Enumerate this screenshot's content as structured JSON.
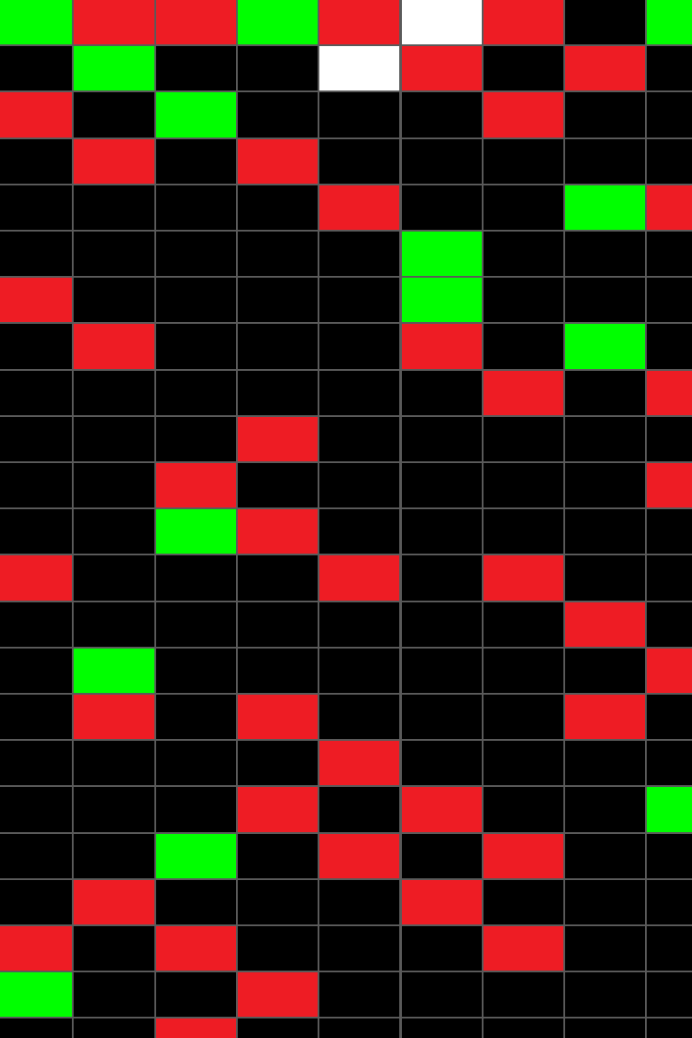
{
  "grid": {
    "rows": [
      [
        "#00ff00",
        "#ee1c24",
        "#ee1c24",
        "#00ff00",
        "#ee1c24",
        "#ffffff",
        "#ee1c24",
        "#000000",
        "#00ff00"
      ],
      [
        "#000000",
        "#00ff00",
        "#000000",
        "#000000",
        "#ffffff",
        "#ee1c24",
        "#000000",
        "#ee1c24",
        "#000000"
      ],
      [
        "#ee1c24",
        "#000000",
        "#00ff00",
        "#000000",
        "#000000",
        "#000000",
        "#ee1c24",
        "#000000",
        "#000000"
      ],
      [
        "#000000",
        "#ee1c24",
        "#000000",
        "#ee1c24",
        "#000000",
        "#000000",
        "#000000",
        "#000000",
        "#000000"
      ],
      [
        "#000000",
        "#000000",
        "#000000",
        "#000000",
        "#ee1c24",
        "#000000",
        "#000000",
        "#00ff00",
        "#ee1c24"
      ],
      [
        "#000000",
        "#000000",
        "#000000",
        "#000000",
        "#000000",
        "#00ff00",
        "#000000",
        "#000000",
        "#000000"
      ],
      [
        "#ee1c24",
        "#000000",
        "#000000",
        "#000000",
        "#000000",
        "#00ff00",
        "#000000",
        "#000000",
        "#000000"
      ],
      [
        "#000000",
        "#ee1c24",
        "#000000",
        "#000000",
        "#000000",
        "#ee1c24",
        "#000000",
        "#00ff00",
        "#000000"
      ],
      [
        "#000000",
        "#000000",
        "#000000",
        "#000000",
        "#000000",
        "#000000",
        "#ee1c24",
        "#000000",
        "#ee1c24"
      ],
      [
        "#000000",
        "#000000",
        "#000000",
        "#ee1c24",
        "#000000",
        "#000000",
        "#000000",
        "#000000",
        "#000000"
      ],
      [
        "#000000",
        "#000000",
        "#ee1c24",
        "#000000",
        "#000000",
        "#000000",
        "#000000",
        "#000000",
        "#ee1c24"
      ],
      [
        "#000000",
        "#000000",
        "#00ff00",
        "#ee1c24",
        "#000000",
        "#000000",
        "#000000",
        "#000000",
        "#000000"
      ],
      [
        "#ee1c24",
        "#000000",
        "#000000",
        "#000000",
        "#ee1c24",
        "#000000",
        "#ee1c24",
        "#000000",
        "#000000"
      ],
      [
        "#000000",
        "#000000",
        "#000000",
        "#000000",
        "#000000",
        "#000000",
        "#000000",
        "#ee1c24",
        "#000000"
      ],
      [
        "#000000",
        "#00ff00",
        "#000000",
        "#000000",
        "#000000",
        "#000000",
        "#000000",
        "#000000",
        "#ee1c24"
      ],
      [
        "#000000",
        "#ee1c24",
        "#000000",
        "#ee1c24",
        "#000000",
        "#000000",
        "#000000",
        "#ee1c24",
        "#000000"
      ],
      [
        "#000000",
        "#000000",
        "#000000",
        "#000000",
        "#ee1c24",
        "#000000",
        "#000000",
        "#000000",
        "#000000"
      ],
      [
        "#000000",
        "#000000",
        "#000000",
        "#ee1c24",
        "#000000",
        "#ee1c24",
        "#000000",
        "#000000",
        "#00ff00"
      ],
      [
        "#000000",
        "#000000",
        "#00ff00",
        "#000000",
        "#ee1c24",
        "#000000",
        "#ee1c24",
        "#000000",
        "#000000"
      ],
      [
        "#000000",
        "#ee1c24",
        "#000000",
        "#000000",
        "#000000",
        "#ee1c24",
        "#000000",
        "#000000",
        "#000000"
      ],
      [
        "#ee1c24",
        "#000000",
        "#ee1c24",
        "#000000",
        "#000000",
        "#000000",
        "#ee1c24",
        "#000000",
        "#000000"
      ],
      [
        "#00ff00",
        "#000000",
        "#000000",
        "#ee1c24",
        "#000000",
        "#000000",
        "#000000",
        "#000000",
        "#000000"
      ],
      [
        "#000000",
        "#000000",
        "#ee1c24",
        "#000000",
        "#000000",
        "#000000",
        "#000000",
        "#000000",
        "#000000"
      ]
    ]
  }
}
